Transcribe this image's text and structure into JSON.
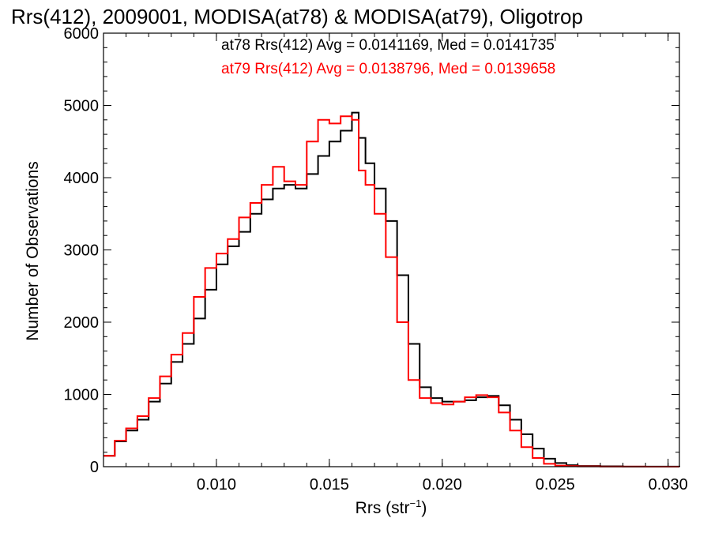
{
  "chart_data": {
    "type": "line",
    "title": "Rrs(412), 2009001, MODISA(at78) & MODISA(at79), Oligotrop",
    "xlabel_main": "Rrs (str",
    "xlabel_sup": "−1",
    "xlabel_close": ")",
    "ylabel": "Number of Observations",
    "xlim": [
      0.005,
      0.0305
    ],
    "ylim": [
      0,
      6000
    ],
    "x_ticks": [
      0.01,
      0.015,
      0.02,
      0.025,
      0.03
    ],
    "x_tick_labels": [
      "0.010",
      "0.015",
      "0.020",
      "0.025",
      "0.030"
    ],
    "y_ticks": [
      0,
      1000,
      2000,
      3000,
      4000,
      5000,
      6000
    ],
    "y_tick_labels": [
      "0",
      "1000",
      "2000",
      "3000",
      "4000",
      "5000",
      "6000"
    ],
    "grid": false,
    "annotations": [
      {
        "text": "at78 Rrs(412) Avg = 0.0141169, Med = 0.0141735",
        "color": "#000000"
      },
      {
        "text": "at79 Rrs(412) Avg = 0.0138796, Med = 0.0139658",
        "color": "#ff0000"
      }
    ],
    "series": [
      {
        "color": "#000000",
        "x": [
          0.005,
          0.0055,
          0.006,
          0.0065,
          0.007,
          0.0075,
          0.008,
          0.0085,
          0.009,
          0.0095,
          0.01,
          0.0105,
          0.011,
          0.0115,
          0.012,
          0.0125,
          0.013,
          0.0135,
          0.014,
          0.0145,
          0.015,
          0.0155,
          0.016,
          0.0163,
          0.0166,
          0.017,
          0.0175,
          0.018,
          0.0185,
          0.019,
          0.0195,
          0.02,
          0.0205,
          0.021,
          0.0215,
          0.022,
          0.0225,
          0.023,
          0.0235,
          0.024,
          0.0245,
          0.025,
          0.0255,
          0.026,
          0.027,
          0.028,
          0.029,
          0.0305
        ],
        "y": [
          150,
          350,
          500,
          650,
          900,
          1150,
          1450,
          1700,
          2050,
          2450,
          2800,
          3050,
          3250,
          3500,
          3700,
          3850,
          3900,
          3850,
          4050,
          4300,
          4500,
          4650,
          4900,
          4550,
          4200,
          3850,
          3400,
          2650,
          1700,
          1100,
          950,
          900,
          900,
          920,
          960,
          980,
          850,
          650,
          450,
          250,
          110,
          50,
          20,
          10,
          5,
          2,
          1,
          0
        ]
      },
      {
        "color": "#ff0000",
        "x": [
          0.005,
          0.0055,
          0.006,
          0.0065,
          0.007,
          0.0075,
          0.008,
          0.0085,
          0.009,
          0.0095,
          0.01,
          0.0105,
          0.011,
          0.0115,
          0.012,
          0.0125,
          0.013,
          0.0135,
          0.014,
          0.0145,
          0.015,
          0.0155,
          0.016,
          0.0163,
          0.0166,
          0.017,
          0.0175,
          0.018,
          0.0185,
          0.019,
          0.0195,
          0.02,
          0.0205,
          0.021,
          0.0215,
          0.022,
          0.0225,
          0.023,
          0.0235,
          0.024,
          0.0245,
          0.025,
          0.0255,
          0.026,
          0.027,
          0.028,
          0.029,
          0.0305
        ],
        "y": [
          150,
          360,
          530,
          700,
          950,
          1250,
          1550,
          1850,
          2350,
          2750,
          2950,
          3150,
          3450,
          3650,
          3900,
          4150,
          3950,
          3900,
          4500,
          4800,
          4750,
          4850,
          4800,
          4100,
          3900,
          3500,
          2900,
          2000,
          1200,
          950,
          880,
          860,
          900,
          960,
          990,
          960,
          750,
          500,
          270,
          120,
          40,
          15,
          8,
          4,
          2,
          1,
          0,
          0
        ]
      }
    ]
  }
}
